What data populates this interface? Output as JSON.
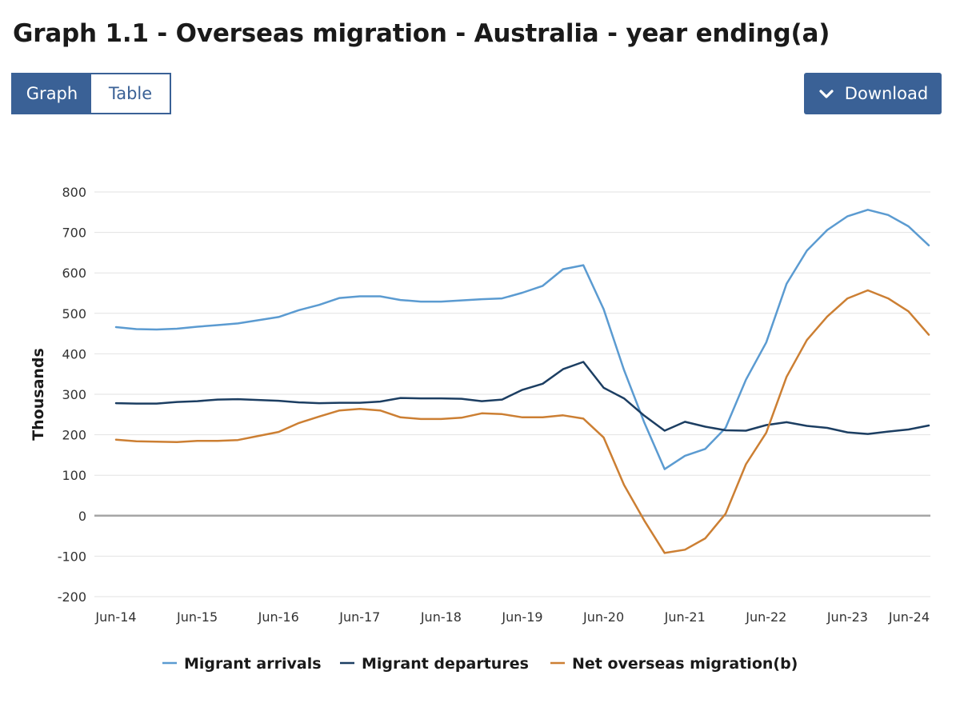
{
  "page": {
    "title": "Graph 1.1 - Overseas migration - Australia - year ending(a)",
    "tabs": [
      {
        "label": "Graph",
        "active": true
      },
      {
        "label": "Table",
        "active": false
      }
    ],
    "download_label": "Download",
    "accent_color": "#3a6196"
  },
  "chart_data": {
    "type": "line",
    "title": "Graph 1.1 - Overseas migration - Australia - year ending(a)",
    "ylabel": "Thousands",
    "xlabel": "",
    "ylim": [
      -200,
      800
    ],
    "yticks": [
      -200,
      -100,
      0,
      100,
      200,
      300,
      400,
      500,
      600,
      700,
      800
    ],
    "xtick_labels": [
      "Jun-14",
      "Jun-15",
      "Jun-16",
      "Jun-17",
      "Jun-18",
      "Jun-19",
      "Jun-20",
      "Jun-21",
      "Jun-22",
      "Jun-23",
      "Jun-24"
    ],
    "x": [
      "Jun-14",
      "Sep-14",
      "Dec-14",
      "Mar-15",
      "Jun-15",
      "Sep-15",
      "Dec-15",
      "Mar-16",
      "Jun-16",
      "Sep-16",
      "Dec-16",
      "Mar-17",
      "Jun-17",
      "Sep-17",
      "Dec-17",
      "Mar-18",
      "Jun-18",
      "Sep-18",
      "Dec-18",
      "Mar-19",
      "Jun-19",
      "Sep-19",
      "Dec-19",
      "Mar-20",
      "Jun-20",
      "Sep-20",
      "Dec-20",
      "Mar-21",
      "Jun-21",
      "Sep-21",
      "Dec-21",
      "Mar-22",
      "Jun-22",
      "Sep-22",
      "Dec-22",
      "Mar-23",
      "Jun-23",
      "Sep-23",
      "Dec-23",
      "Mar-24",
      "Jun-24"
    ],
    "grid": true,
    "legend_position": "bottom",
    "series": [
      {
        "name": "Migrant arrivals",
        "color": "#5b9bd1",
        "values": [
          466,
          461,
          460,
          462,
          467,
          471,
          475,
          483,
          491,
          508,
          521,
          538,
          542,
          542,
          533,
          529,
          529,
          532,
          535,
          537,
          551,
          568,
          609,
          619,
          510,
          360,
          230,
          115,
          148,
          165,
          217,
          336,
          428,
          573,
          655,
          706,
          740,
          756,
          743,
          715,
          668
        ]
      },
      {
        "name": "Migrant departures",
        "color": "#1c3e62",
        "values": [
          278,
          277,
          277,
          281,
          283,
          287,
          288,
          286,
          284,
          280,
          278,
          279,
          279,
          282,
          291,
          290,
          290,
          289,
          283,
          287,
          311,
          326,
          362,
          380,
          316,
          290,
          247,
          210,
          232,
          220,
          211,
          210,
          224,
          231,
          222,
          217,
          206,
          202,
          208,
          213,
          223
        ]
      },
      {
        "name": "Net overseas migration(b)",
        "color": "#cc7f33",
        "values": [
          188,
          184,
          183,
          182,
          185,
          185,
          187,
          197,
          207,
          229,
          245,
          260,
          264,
          260,
          243,
          239,
          239,
          242,
          253,
          251,
          243,
          243,
          248,
          240,
          193,
          76,
          -12,
          -92,
          -84,
          -56,
          5,
          127,
          205,
          343,
          434,
          492,
          537,
          557,
          537,
          505,
          447
        ]
      }
    ]
  }
}
